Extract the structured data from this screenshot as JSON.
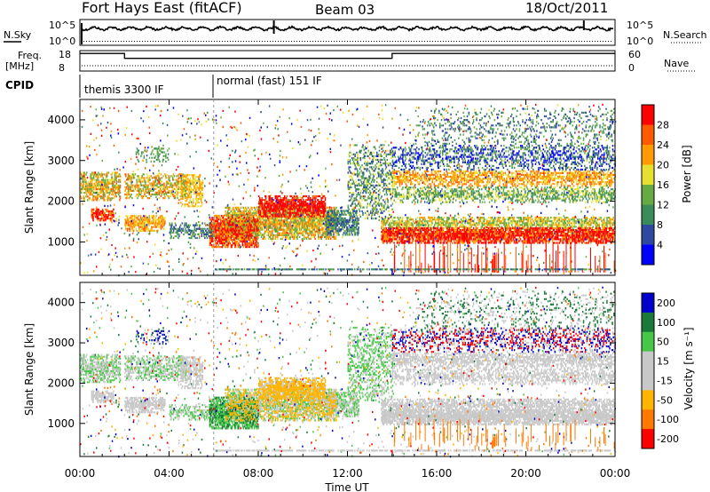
{
  "header": {
    "station": "Fort Hays East (fitACF)",
    "beam": "Beam 03",
    "date": "18/Oct/2011"
  },
  "top_panel": {
    "left_label": "N.Sky",
    "left_ticks": [
      "10^5",
      "10^0"
    ],
    "right_label": "N.Search",
    "right_ticks": [
      "10^5",
      "10^0"
    ]
  },
  "freq_panel": {
    "left_label_1": "Freq.",
    "left_label_2": "[MHz]",
    "left_ticks": [
      "18",
      "8"
    ],
    "right_label": "Nave",
    "right_ticks": [
      "60",
      "0"
    ]
  },
  "cpid": {
    "label": "CPID",
    "segments": [
      {
        "text": "themis 3300 IF",
        "start_hour": 0
      },
      {
        "text": "normal (fast) 151 IF",
        "start_hour": 6
      }
    ]
  },
  "colors": {
    "power": [
      "#0000ff",
      "#2e4aa0",
      "#3a8c5a",
      "#66aa44",
      "#e8e030",
      "#ff9a00",
      "#ff5a00",
      "#ff0000"
    ],
    "velocity": [
      "#0000cc",
      "#1a7a3a",
      "#46c846",
      "#c8c8c8",
      "#c8c8c8",
      "#ffb400",
      "#ff7800",
      "#ff0000"
    ]
  },
  "chart_data": [
    {
      "type": "heatmap",
      "title": "Power",
      "ylabel": "Slant Range [km]",
      "ylim": [
        180,
        4500
      ],
      "yticks": [
        1000,
        2000,
        3000,
        4000
      ],
      "colorbar_label": "Power [dB]",
      "colorbar_ticks": [
        4,
        8,
        12,
        16,
        20,
        24,
        28
      ],
      "colorbar_range": [
        0,
        32
      ]
    },
    {
      "type": "heatmap",
      "title": "Velocity",
      "ylabel": "Slant Range [km]",
      "ylim": [
        180,
        4500
      ],
      "yticks": [
        1000,
        2000,
        3000,
        4000
      ],
      "colorbar_label": "Velocity [m s⁻¹]",
      "colorbar_ticks": [
        "200",
        "100",
        "50",
        "15",
        "-15",
        "-50",
        "-100",
        "-200"
      ]
    }
  ],
  "x_axis": {
    "label": "Time UT",
    "xlim": [
      0,
      24
    ],
    "ticks": [
      {
        "hour": 0,
        "label": "00:00"
      },
      {
        "hour": 4,
        "label": "04:00"
      },
      {
        "hour": 8,
        "label": "08:00"
      },
      {
        "hour": 12,
        "label": "12:00"
      },
      {
        "hour": 16,
        "label": "16:00"
      },
      {
        "hour": 20,
        "label": "20:00"
      },
      {
        "hour": 24,
        "label": "00:00"
      }
    ]
  },
  "frequency_series": {
    "hours": [
      0,
      2,
      2,
      14,
      14,
      24
    ],
    "mhz": [
      17,
      17,
      14.5,
      14.5,
      17,
      17
    ]
  }
}
